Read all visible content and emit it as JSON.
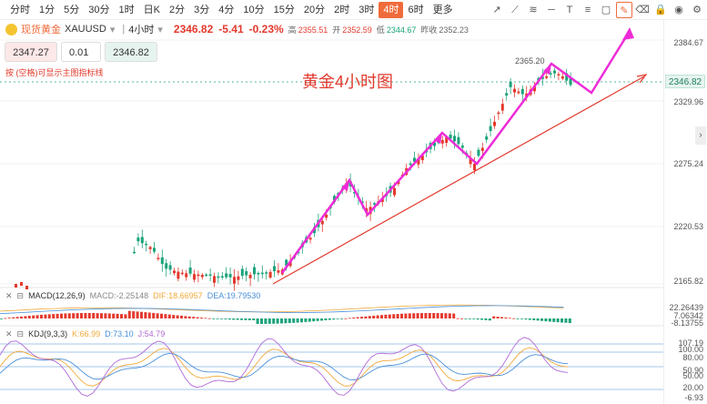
{
  "timeframes": [
    "分时",
    "1分",
    "5分",
    "30分",
    "1时",
    "日K",
    "2分",
    "3分",
    "4分",
    "10分",
    "15分",
    "20分",
    "2时",
    "3时",
    "4时",
    "6时",
    "更多"
  ],
  "active_timeframe": "4时",
  "tool_icons": [
    "trend-line-icon",
    "ray-icon",
    "parallel-channel-icon",
    "horizontal-line-icon",
    "text-icon",
    "fibonacci-icon",
    "shapes-icon",
    "brush-icon",
    "eraser-icon",
    "lock-icon",
    "visibility-icon",
    "settings-icon"
  ],
  "symbol": {
    "name": "现货黄金",
    "code": "XAUUSD",
    "timeframe_label": "4小时",
    "price": "2346.82",
    "change": "-5.41",
    "change_pct": "-0.23%",
    "high_label": "高",
    "high": "2355.51",
    "open_label": "开",
    "open": "2352.59",
    "low_label": "低",
    "low": "2344.67",
    "prev_label": "昨收",
    "prev": "2352.23"
  },
  "trade": {
    "sell": "2347.27",
    "qty": "0.01",
    "buy": "2346.82"
  },
  "hint": "按 (空格)可显示主图指标线",
  "annotation_title": "黄金4小时图",
  "peak_label": "2365.20",
  "price_axis": [
    "2384.67",
    "2329.96",
    "2275.24",
    "2220.53",
    "2165.82"
  ],
  "current_price_tag": "2346.82",
  "macd": {
    "label": "MACD(12,26,9)",
    "macd": "MACD:-2.25148",
    "dif": "DIF:18.66957",
    "dea": "DEA:19.79530",
    "axis": [
      "22.26439",
      "7.06342",
      "-8.13755"
    ]
  },
  "kdj": {
    "label": "KDJ(9,3,3)",
    "k": "K:66.99",
    "d": "D:73.10",
    "j": "J:54.79",
    "axis": [
      "107.19",
      "100.00",
      "80.00",
      "50.90",
      "50.00",
      "20.00",
      "-6.93"
    ]
  },
  "colors": {
    "up": "#e3392d",
    "down": "#1aa37a",
    "accent": "#f06b3b",
    "arrow": "#ee2bd8"
  }
}
